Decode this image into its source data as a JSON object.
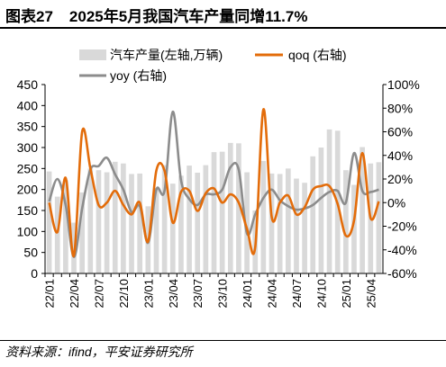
{
  "figure": {
    "number": "图表27",
    "title": "2025年5月我国汽车产量同增11.7%"
  },
  "source": "资料来源：ifind，平安证券研究所",
  "colors": {
    "bar": "#d9d9d9",
    "qoq": "#e36c0a",
    "yoy": "#8c8c8c",
    "axis": "#000000"
  },
  "chart_data": {
    "type": "bar",
    "x": [
      "22/01",
      "22/02",
      "22/03",
      "22/04",
      "22/05",
      "22/06",
      "22/07",
      "22/08",
      "22/09",
      "22/10",
      "22/11",
      "22/12",
      "23/01",
      "23/02",
      "23/03",
      "23/04",
      "23/05",
      "23/06",
      "23/07",
      "23/08",
      "23/09",
      "23/10",
      "23/11",
      "23/12",
      "24/01",
      "24/02",
      "24/03",
      "24/04",
      "24/05",
      "24/06",
      "24/07",
      "24/08",
      "24/09",
      "24/10",
      "24/11",
      "24/12",
      "25/01",
      "25/02",
      "25/03",
      "25/04",
      "25/05"
    ],
    "tick_labels": [
      "22/01",
      "22/04",
      "22/07",
      "22/10",
      "23/01",
      "23/04",
      "23/07",
      "23/10",
      "24/01",
      "24/04",
      "24/07",
      "24/10",
      "25/01",
      "25/04"
    ],
    "series": [
      {
        "name": "汽车产量(左轴,万辆)",
        "type": "bar",
        "axis": "left",
        "values": [
          243,
          183,
          222,
          121,
          193,
          250,
          246,
          241,
          266,
          262,
          237,
          238,
          160,
          203,
          258,
          214,
          233,
          257,
          240,
          258,
          289,
          290,
          311,
          310,
          241,
          150,
          268,
          238,
          237,
          250,
          226,
          216,
          279,
          300,
          343,
          340,
          246,
          211,
          301,
          262,
          265
        ]
      },
      {
        "name": "qoq (右轴)",
        "type": "line",
        "axis": "right",
        "values": [
          0.0,
          -0.25,
          0.21,
          -0.45,
          0.6,
          0.29,
          -0.02,
          0.0,
          0.1,
          -0.02,
          -0.1,
          0.0,
          -0.33,
          0.27,
          0.27,
          -0.17,
          0.09,
          0.1,
          -0.07,
          0.08,
          0.12,
          0.0,
          0.07,
          0.0,
          -0.22,
          -0.38,
          0.79,
          -0.12,
          0.0,
          0.06,
          -0.1,
          -0.04,
          0.11,
          0.14,
          0.14,
          -0.01,
          -0.28,
          -0.15,
          0.42,
          -0.13,
          0.01
        ]
      },
      {
        "name": "yoy (右轴)",
        "type": "line",
        "axis": "right",
        "values": [
          0.01,
          0.2,
          -0.02,
          -0.46,
          -0.05,
          0.28,
          0.31,
          0.38,
          0.24,
          0.11,
          -0.08,
          -0.03,
          -0.34,
          0.11,
          0.1,
          0.77,
          0.19,
          0.03,
          -0.02,
          0.07,
          0.07,
          0.11,
          0.3,
          0.28,
          -0.26,
          -0.1,
          0.04,
          0.11,
          0.02,
          -0.03,
          -0.06,
          -0.05,
          -0.02,
          0.04,
          0.09,
          0.1,
          0.0,
          0.42,
          0.1,
          0.09,
          0.11
        ]
      }
    ],
    "y_left": {
      "ylim": [
        0,
        450
      ],
      "ticks": [
        "0",
        "50",
        "100",
        "150",
        "200",
        "250",
        "300",
        "350",
        "400",
        "450"
      ]
    },
    "y_right": {
      "ylim": [
        -0.6,
        1.0
      ],
      "ticks": [
        "-60%",
        "-40%",
        "-20%",
        "0%",
        "20%",
        "40%",
        "60%",
        "80%",
        "100%"
      ]
    },
    "legend_placement": "top",
    "grid": false
  }
}
